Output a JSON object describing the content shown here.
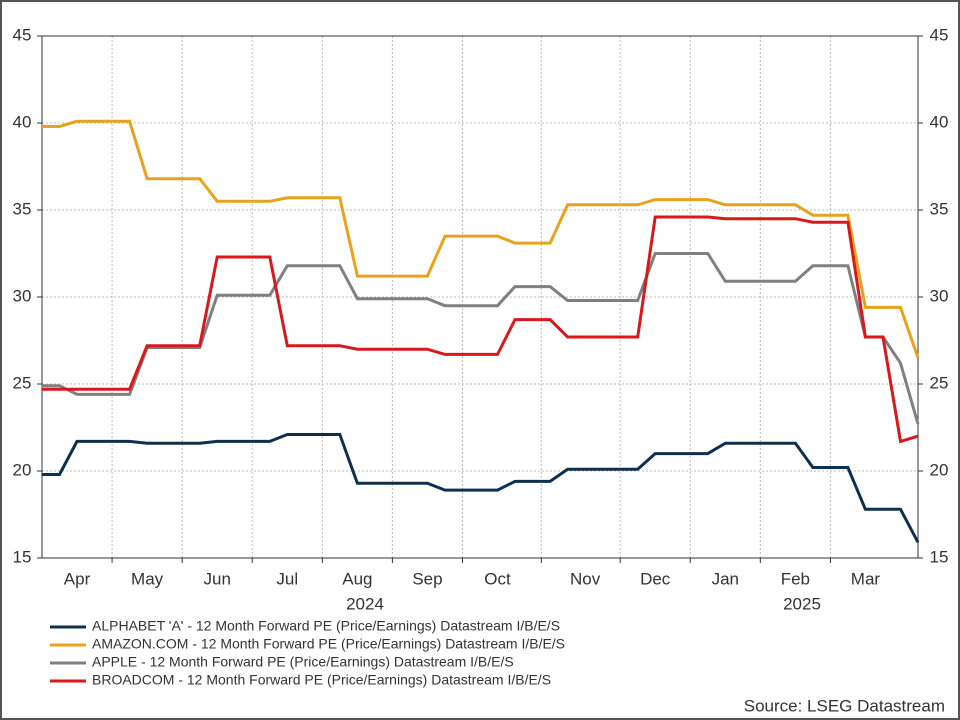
{
  "chart_data": {
    "type": "line",
    "categories": [
      null,
      null,
      "Apr",
      null,
      null,
      null,
      "May",
      null,
      null,
      null,
      "Jun",
      null,
      null,
      null,
      "Jul",
      null,
      null,
      null,
      "Aug",
      null,
      null,
      null,
      "Sep",
      null,
      null,
      null,
      "Oct",
      null,
      null,
      null,
      null,
      "Nov",
      null,
      null,
      null,
      "Dec",
      null,
      null,
      null,
      "Jan",
      null,
      null,
      null,
      "Feb",
      null,
      null,
      null,
      "Mar",
      null,
      null,
      null
    ],
    "x_group_labels": [
      "2024",
      "2025"
    ],
    "series": [
      {
        "name": "ALPHABET 'A' - 12 Month Forward PE (Price/Earnings) Datastream I/B/E/S",
        "color": "#0d3050",
        "values": [
          19.8,
          19.8,
          21.7,
          21.7,
          21.7,
          21.7,
          21.6,
          21.6,
          21.6,
          21.6,
          21.7,
          21.7,
          21.7,
          21.7,
          22.1,
          22.1,
          22.1,
          22.1,
          19.3,
          19.3,
          19.3,
          19.3,
          19.3,
          18.9,
          18.9,
          18.9,
          18.9,
          19.4,
          19.4,
          19.4,
          20.1,
          20.1,
          20.1,
          20.1,
          20.1,
          21,
          21,
          21,
          21,
          21.6,
          21.6,
          21.6,
          21.6,
          21.6,
          20.2,
          20.2,
          20.2,
          17.8,
          17.8,
          17.8,
          15.9
        ]
      },
      {
        "name": "AMAZON.COM - 12 Month Forward PE (Price/Earnings) Datastream I/B/E/S",
        "color": "#e8a21c",
        "values": [
          39.8,
          39.8,
          40.1,
          40.1,
          40.1,
          40.1,
          36.8,
          36.8,
          36.8,
          36.8,
          35.5,
          35.5,
          35.5,
          35.5,
          35.7,
          35.7,
          35.7,
          35.7,
          31.2,
          31.2,
          31.2,
          31.2,
          31.2,
          33.5,
          33.5,
          33.5,
          33.5,
          33.1,
          33.1,
          33.1,
          35.3,
          35.3,
          35.3,
          35.3,
          35.3,
          35.6,
          35.6,
          35.6,
          35.6,
          35.3,
          35.3,
          35.3,
          35.3,
          35.3,
          34.7,
          34.7,
          34.7,
          29.4,
          29.4,
          29.4,
          26.5
        ]
      },
      {
        "name": "APPLE - 12 Month Forward PE (Price/Earnings) Datastream I/B/E/S",
        "color": "#808080",
        "values": [
          24.9,
          24.9,
          24.4,
          24.4,
          24.4,
          24.4,
          27.1,
          27.1,
          27.1,
          27.1,
          30.1,
          30.1,
          30.1,
          30.1,
          31.8,
          31.8,
          31.8,
          31.8,
          29.9,
          29.9,
          29.9,
          29.9,
          29.9,
          29.5,
          29.5,
          29.5,
          29.5,
          30.6,
          30.6,
          30.6,
          29.8,
          29.8,
          29.8,
          29.8,
          29.8,
          32.5,
          32.5,
          32.5,
          32.5,
          30.9,
          30.9,
          30.9,
          30.9,
          30.9,
          31.8,
          31.8,
          31.8,
          27.7,
          27.7,
          26.2,
          22.7
        ]
      },
      {
        "name": "BROADCOM - 12 Month Forward PE (Price/Earnings) Datastream I/B/E/S",
        "color": "#d7191c",
        "values": [
          24.7,
          24.7,
          24.7,
          24.7,
          24.7,
          24.7,
          27.2,
          27.2,
          27.2,
          27.2,
          32.3,
          32.3,
          32.3,
          32.3,
          27.2,
          27.2,
          27.2,
          27.2,
          27,
          27,
          27,
          27,
          27,
          26.7,
          26.7,
          26.7,
          26.7,
          28.7,
          28.7,
          28.7,
          27.7,
          27.7,
          27.7,
          27.7,
          27.7,
          34.6,
          34.6,
          34.6,
          34.6,
          34.5,
          34.5,
          34.5,
          34.5,
          34.5,
          34.3,
          34.3,
          34.3,
          27.7,
          27.7,
          21.7,
          22
        ]
      }
    ],
    "ylim": [
      15,
      45
    ],
    "yticks": [
      15,
      20,
      25,
      30,
      35,
      40,
      45
    ],
    "y2lim": [
      15,
      45
    ],
    "y2ticks": [
      15,
      20,
      25,
      30,
      35,
      40,
      45
    ],
    "grid": true,
    "legend": "bottom",
    "source": "Source: LSEG Datastream"
  }
}
